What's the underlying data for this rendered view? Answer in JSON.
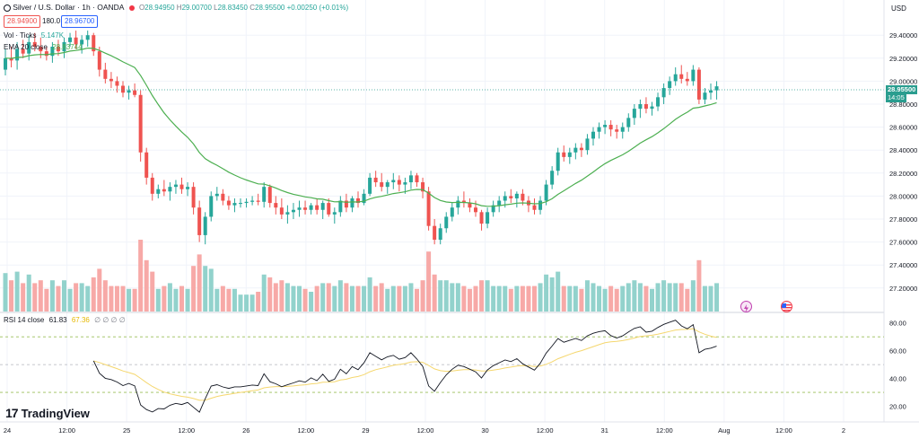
{
  "legend": {
    "symbol": "Silver / U.S. Dollar · 1h · OANDA",
    "ohlc": {
      "o_label": "O",
      "o": "28.94950",
      "h_label": "H",
      "h": "29.00700",
      "l_label": "L",
      "l": "28.83450",
      "c_label": "C",
      "c": "28.95500",
      "change": "+0.00250 (+0.01%)"
    },
    "bid": "28.94900",
    "spread": "180.0",
    "ask": "28.96700",
    "volume_label": "Vol · Ticks",
    "volume_value": "5.147K",
    "ema_label": "EMA 20 close",
    "ema_value": "28.83744"
  },
  "rsi_legend": {
    "label": "RSI 14 close",
    "value": "61.83",
    "ma_value": "67.36",
    "extras": "∅ ∅ ∅ ∅"
  },
  "price_axis": {
    "currency": "USD",
    "ticks": [
      "29.40000",
      "29.20000",
      "29.00000",
      "28.80000",
      "28.60000",
      "28.40000",
      "28.20000",
      "28.00000",
      "27.80000",
      "27.60000",
      "27.40000",
      "27.20000"
    ],
    "current_price": "28.95500",
    "countdown": "14:05"
  },
  "rsi_axis": {
    "ticks": [
      "80.00",
      "60.00",
      "40.00",
      "20.00"
    ]
  },
  "time_axis": {
    "labels": [
      "24",
      "12:00",
      "25",
      "12:00",
      "26",
      "12:00",
      "29",
      "12:00",
      "30",
      "12:00",
      "31",
      "12:00",
      "Aug",
      "12:00",
      "2"
    ]
  },
  "branding": {
    "logo_text": "TradingView"
  },
  "colors": {
    "up": "#26a69a",
    "down": "#ef5350",
    "vol_up": "#92d2cc",
    "vol_down": "#f7a9a7",
    "ema": "#4caf50",
    "rsi": "#131722",
    "rsi_ma": "#f5d76e",
    "grid": "#f0f3fa",
    "last_price": "#2a9d8f"
  },
  "chart_data": {
    "type": "candlestick",
    "symbol": "XAGUSD",
    "timeframe": "1h",
    "price_range": [
      27.05,
      29.55
    ],
    "candles_ohlc": [
      [
        29.1,
        29.28,
        29.05,
        29.2
      ],
      [
        29.2,
        29.3,
        29.12,
        29.18
      ],
      [
        29.18,
        29.34,
        29.1,
        29.28
      ],
      [
        29.28,
        29.36,
        29.2,
        29.24
      ],
      [
        29.24,
        29.4,
        29.18,
        29.34
      ],
      [
        29.34,
        29.42,
        29.26,
        29.3
      ],
      [
        29.3,
        29.38,
        29.2,
        29.26
      ],
      [
        29.26,
        29.3,
        29.18,
        29.22
      ],
      [
        29.22,
        29.34,
        29.16,
        29.3
      ],
      [
        29.3,
        29.36,
        29.22,
        29.26
      ],
      [
        29.26,
        29.38,
        29.2,
        29.34
      ],
      [
        29.34,
        29.42,
        29.3,
        29.38
      ],
      [
        29.38,
        29.44,
        29.28,
        29.32
      ],
      [
        29.32,
        29.4,
        29.24,
        29.36
      ],
      [
        29.36,
        29.44,
        29.3,
        29.4
      ],
      [
        29.4,
        29.42,
        29.22,
        29.26
      ],
      [
        29.26,
        29.3,
        29.04,
        29.1
      ],
      [
        29.1,
        29.16,
        28.98,
        29.02
      ],
      [
        29.02,
        29.08,
        28.94,
        29.0
      ],
      [
        29.0,
        29.04,
        28.9,
        28.96
      ],
      [
        28.96,
        29.0,
        28.86,
        28.9
      ],
      [
        28.9,
        28.96,
        28.84,
        28.92
      ],
      [
        28.92,
        28.98,
        28.86,
        28.88
      ],
      [
        28.88,
        28.92,
        28.3,
        28.38
      ],
      [
        28.38,
        28.42,
        28.1,
        28.16
      ],
      [
        28.16,
        28.2,
        27.96,
        28.02
      ],
      [
        28.02,
        28.1,
        27.98,
        28.06
      ],
      [
        28.06,
        28.14,
        28.0,
        28.04
      ],
      [
        28.04,
        28.12,
        27.96,
        28.08
      ],
      [
        28.08,
        28.14,
        28.02,
        28.1
      ],
      [
        28.1,
        28.16,
        28.02,
        28.06
      ],
      [
        28.06,
        28.12,
        28.0,
        28.08
      ],
      [
        28.08,
        28.12,
        27.84,
        27.9
      ],
      [
        27.9,
        27.96,
        27.6,
        27.66
      ],
      [
        27.66,
        27.86,
        27.58,
        27.82
      ],
      [
        27.82,
        28.04,
        27.78,
        28.0
      ],
      [
        28.0,
        28.08,
        27.96,
        28.02
      ],
      [
        28.02,
        28.06,
        27.92,
        27.96
      ],
      [
        27.96,
        28.0,
        27.88,
        27.92
      ],
      [
        27.92,
        27.98,
        27.86,
        27.94
      ],
      [
        27.94,
        27.98,
        27.9,
        27.94
      ],
      [
        27.94,
        27.98,
        27.9,
        27.95
      ],
      [
        27.95,
        28.0,
        27.92,
        27.96
      ],
      [
        27.96,
        28.02,
        27.92,
        27.95
      ],
      [
        27.95,
        28.12,
        27.9,
        28.08
      ],
      [
        28.08,
        28.1,
        27.9,
        27.94
      ],
      [
        27.94,
        28.0,
        27.84,
        27.9
      ],
      [
        27.9,
        27.98,
        27.8,
        27.84
      ],
      [
        27.84,
        27.92,
        27.76,
        27.86
      ],
      [
        27.86,
        27.94,
        27.8,
        27.88
      ],
      [
        27.88,
        27.96,
        27.82,
        27.9
      ],
      [
        27.9,
        27.96,
        27.84,
        27.88
      ],
      [
        27.88,
        27.94,
        27.84,
        27.92
      ],
      [
        27.92,
        27.98,
        27.84,
        27.88
      ],
      [
        27.88,
        27.96,
        27.8,
        27.94
      ],
      [
        27.94,
        27.98,
        27.82,
        27.84
      ],
      [
        27.84,
        27.9,
        27.76,
        27.86
      ],
      [
        27.86,
        28.0,
        27.82,
        27.96
      ],
      [
        27.96,
        28.02,
        27.86,
        27.9
      ],
      [
        27.9,
        28.0,
        27.86,
        27.98
      ],
      [
        27.98,
        28.04,
        27.9,
        27.94
      ],
      [
        27.94,
        28.06,
        27.92,
        28.02
      ],
      [
        28.02,
        28.2,
        28.0,
        28.16
      ],
      [
        28.16,
        28.22,
        28.08,
        28.12
      ],
      [
        28.12,
        28.2,
        28.04,
        28.08
      ],
      [
        28.08,
        28.14,
        28.02,
        28.12
      ],
      [
        28.12,
        28.2,
        28.06,
        28.14
      ],
      [
        28.14,
        28.18,
        28.04,
        28.1
      ],
      [
        28.1,
        28.16,
        28.02,
        28.12
      ],
      [
        28.12,
        28.22,
        28.06,
        28.18
      ],
      [
        28.18,
        28.2,
        28.08,
        28.12
      ],
      [
        28.12,
        28.16,
        27.98,
        28.04
      ],
      [
        28.04,
        28.08,
        27.7,
        27.74
      ],
      [
        27.74,
        27.8,
        27.58,
        27.62
      ],
      [
        27.62,
        27.76,
        27.58,
        27.72
      ],
      [
        27.72,
        27.86,
        27.68,
        27.82
      ],
      [
        27.82,
        27.94,
        27.78,
        27.9
      ],
      [
        27.9,
        28.0,
        27.84,
        27.96
      ],
      [
        27.96,
        28.04,
        27.9,
        27.94
      ],
      [
        27.94,
        27.98,
        27.86,
        27.9
      ],
      [
        27.9,
        27.96,
        27.82,
        27.86
      ],
      [
        27.86,
        27.88,
        27.7,
        27.76
      ],
      [
        27.76,
        27.9,
        27.72,
        27.86
      ],
      [
        27.86,
        27.96,
        27.82,
        27.92
      ],
      [
        27.92,
        28.0,
        27.86,
        27.96
      ],
      [
        27.96,
        28.04,
        27.9,
        28.0
      ],
      [
        28.0,
        28.06,
        27.94,
        27.98
      ],
      [
        27.98,
        28.04,
        27.9,
        28.02
      ],
      [
        28.02,
        28.06,
        27.92,
        27.96
      ],
      [
        27.96,
        28.0,
        27.86,
        27.92
      ],
      [
        27.92,
        27.98,
        27.84,
        27.88
      ],
      [
        27.88,
        28.0,
        27.84,
        27.96
      ],
      [
        27.96,
        28.14,
        27.92,
        28.1
      ],
      [
        28.1,
        28.26,
        28.06,
        28.22
      ],
      [
        28.22,
        28.42,
        28.18,
        28.38
      ],
      [
        28.38,
        28.44,
        28.3,
        28.34
      ],
      [
        28.34,
        28.42,
        28.28,
        28.38
      ],
      [
        28.38,
        28.46,
        28.32,
        28.42
      ],
      [
        28.42,
        28.46,
        28.34,
        28.4
      ],
      [
        28.4,
        28.54,
        28.36,
        28.5
      ],
      [
        28.5,
        28.6,
        28.44,
        28.56
      ],
      [
        28.56,
        28.64,
        28.5,
        28.6
      ],
      [
        28.6,
        28.66,
        28.54,
        28.62
      ],
      [
        28.62,
        28.66,
        28.52,
        28.58
      ],
      [
        28.58,
        28.62,
        28.5,
        28.56
      ],
      [
        28.56,
        28.64,
        28.5,
        28.6
      ],
      [
        28.6,
        28.72,
        28.56,
        28.68
      ],
      [
        28.68,
        28.8,
        28.62,
        28.76
      ],
      [
        28.76,
        28.84,
        28.68,
        28.8
      ],
      [
        28.8,
        28.86,
        28.72,
        28.76
      ],
      [
        28.76,
        28.82,
        28.7,
        28.78
      ],
      [
        28.78,
        28.9,
        28.74,
        28.86
      ],
      [
        28.86,
        28.98,
        28.8,
        28.94
      ],
      [
        28.94,
        29.04,
        28.88,
        29.0
      ],
      [
        29.0,
        29.12,
        28.96,
        29.06
      ],
      [
        29.06,
        29.14,
        28.98,
        29.02
      ],
      [
        29.02,
        29.08,
        28.96,
        29.0
      ],
      [
        29.0,
        29.14,
        28.96,
        29.1
      ],
      [
        29.1,
        29.12,
        28.8,
        28.84
      ],
      [
        28.84,
        28.94,
        28.8,
        28.9
      ],
      [
        28.9,
        28.98,
        28.84,
        28.92
      ],
      [
        28.92,
        29.0,
        28.84,
        28.955
      ]
    ],
    "ema20_last": 28.83744,
    "rsi14_last": 61.83,
    "rsi_ma_last": 67.36,
    "rsi_levels": [
      70,
      50,
      30
    ],
    "rsi_range": [
      10,
      85
    ]
  }
}
